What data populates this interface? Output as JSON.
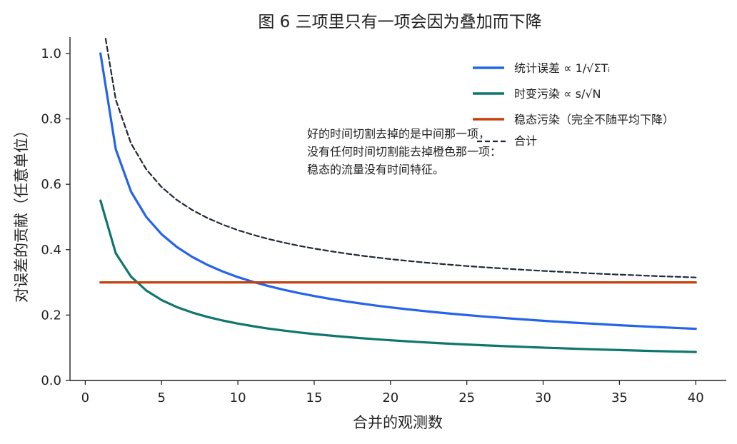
{
  "chart_data": {
    "type": "line",
    "title": "图 6 三项里只有一项会因为叠加而下降",
    "xlabel": "合并的观测数",
    "ylabel": "对误差的贡献（任意单位）",
    "xlim": [
      -1,
      42
    ],
    "ylim": [
      0,
      1.05
    ],
    "xticks": [
      0,
      5,
      10,
      15,
      20,
      25,
      30,
      35,
      40
    ],
    "yticks": [
      0.0,
      0.2,
      0.4,
      0.6,
      0.8,
      1.0
    ],
    "xtick_labels": [
      "0",
      "5",
      "10",
      "15",
      "20",
      "25",
      "30",
      "35",
      "40"
    ],
    "ytick_labels": [
      "0.0",
      "0.2",
      "0.4",
      "0.6",
      "0.8",
      "1.0"
    ],
    "grid": false,
    "legend_position": "top-right",
    "x": [
      1,
      2,
      3,
      4,
      5,
      6,
      7,
      8,
      9,
      10,
      11,
      12,
      13,
      14,
      15,
      16,
      17,
      18,
      19,
      20,
      21,
      22,
      23,
      24,
      25,
      26,
      27,
      28,
      29,
      30,
      31,
      32,
      33,
      34,
      35,
      36,
      37,
      38,
      39,
      40
    ],
    "series": [
      {
        "name": "统计误差",
        "legend_label": "统计误差  ∝ 1/√ΣTᵢ",
        "color": "#2563eb",
        "dashed": false,
        "in_legend": true,
        "values": [
          1.0,
          0.7071,
          0.5774,
          0.5,
          0.4472,
          0.4082,
          0.378,
          0.3536,
          0.3333,
          0.3162,
          0.3015,
          0.2887,
          0.2774,
          0.2673,
          0.2582,
          0.25,
          0.2425,
          0.2357,
          0.2294,
          0.2236,
          0.2182,
          0.2132,
          0.2085,
          0.2041,
          0.2,
          0.1961,
          0.1925,
          0.189,
          0.1857,
          0.1826,
          0.1796,
          0.1768,
          0.1741,
          0.1715,
          0.169,
          0.1667,
          0.1644,
          0.1622,
          0.1601,
          0.1581
        ]
      },
      {
        "name": "时变污染",
        "legend_label": "时变污染  ∝ s/√N",
        "color": "#0f766e",
        "dashed": false,
        "in_legend": true,
        "values": [
          0.55,
          0.3889,
          0.3175,
          0.275,
          0.246,
          0.2245,
          0.2079,
          0.1945,
          0.1833,
          0.1739,
          0.1658,
          0.1588,
          0.1525,
          0.147,
          0.142,
          0.1375,
          0.1334,
          0.1296,
          0.1262,
          0.123,
          0.12,
          0.1173,
          0.1147,
          0.1123,
          0.11,
          0.1079,
          0.1058,
          0.1039,
          0.1021,
          0.1004,
          0.0988,
          0.0972,
          0.0957,
          0.0943,
          0.093,
          0.0917,
          0.0904,
          0.0892,
          0.0881,
          0.087
        ]
      },
      {
        "name": "稳态污染",
        "legend_label": "稳态污染（完全不随平均下降）",
        "color": "#c2410c",
        "dashed": false,
        "in_legend": true,
        "values": [
          0.3,
          0.3,
          0.3,
          0.3,
          0.3,
          0.3,
          0.3,
          0.3,
          0.3,
          0.3,
          0.3,
          0.3,
          0.3,
          0.3,
          0.3,
          0.3,
          0.3,
          0.3,
          0.3,
          0.3,
          0.3,
          0.3,
          0.3,
          0.3,
          0.3,
          0.3,
          0.3,
          0.3,
          0.3,
          0.3,
          0.3,
          0.3,
          0.3,
          0.3,
          0.3,
          0.3,
          0.3,
          0.3,
          0.3,
          0.3
        ]
      },
      {
        "name": "合计",
        "legend_label": "合计",
        "color": "#1f2937",
        "dashed": true,
        "in_legend": false,
        "values": [
          1.1402,
          0.8585,
          0.7247,
          0.6455,
          0.5916,
          0.5521,
          0.5216,
          0.497,
          0.4768,
          0.4598,
          0.4453,
          0.4327,
          0.4217,
          0.412,
          0.4034,
          0.3957,
          0.3887,
          0.3823,
          0.3765,
          0.3712,
          0.3663,
          0.3617,
          0.3576,
          0.3537,
          0.35,
          0.3467,
          0.3435,
          0.3405,
          0.3377,
          0.335,
          0.3326,
          0.3302,
          0.3279,
          0.3258,
          0.3238,
          0.3219,
          0.3201,
          0.3183,
          0.3167,
          0.3151
        ]
      }
    ],
    "annotation": {
      "lines": [
        "好的时间切割去掉的是中间那一项，",
        "没有任何时间切割能去掉橙色那一项：",
        "稳态的流量没有时间特征。"
      ]
    },
    "stray_label": "合计"
  }
}
